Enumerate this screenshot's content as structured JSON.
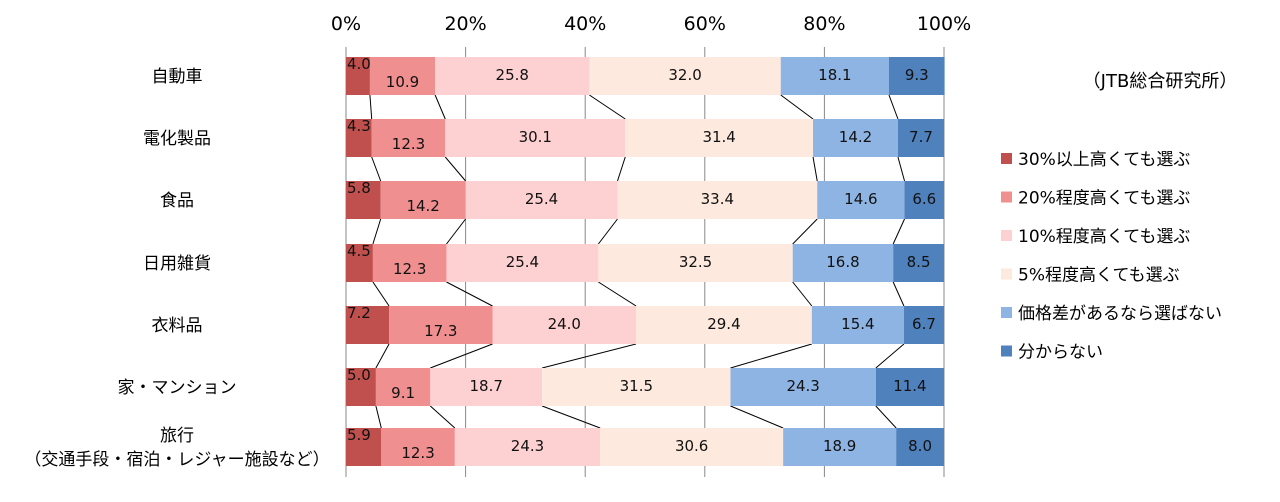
{
  "chart_data": {
    "type": "bar",
    "stacked": "percent",
    "orientation": "horizontal",
    "source": "（JTB総合研究所）",
    "xlim": [
      0,
      100
    ],
    "x_ticks": [
      "0%",
      "20%",
      "40%",
      "60%",
      "80%",
      "100%"
    ],
    "grid": true,
    "legend_position": "right",
    "categories": [
      "自動車",
      "電化製品",
      "食品",
      "日用雑貨",
      "衣料品",
      "家・マンション",
      [
        "旅行",
        "（交通手段・宿泊・レジャー施設など）"
      ]
    ],
    "series": [
      {
        "name": "30%以上高くても選ぶ",
        "color": "#c0504d",
        "values": [
          4.0,
          4.3,
          5.8,
          4.5,
          7.2,
          5.0,
          5.9
        ]
      },
      {
        "name": "20%程度高くても選ぶ",
        "color": "#f08f8f",
        "values": [
          10.9,
          12.3,
          14.2,
          12.3,
          17.3,
          9.1,
          12.3
        ]
      },
      {
        "name": "10%程度高くても選ぶ",
        "color": "#fdd0d2",
        "values": [
          25.8,
          30.1,
          25.4,
          25.4,
          24.0,
          18.7,
          24.3
        ]
      },
      {
        "name": "5%程度高くても選ぶ",
        "color": "#fde9de",
        "values": [
          32.0,
          31.4,
          33.4,
          32.5,
          29.4,
          31.5,
          30.6
        ]
      },
      {
        "name": "価格差があるなら選ばない",
        "color": "#8eb4e3",
        "values": [
          18.1,
          14.2,
          14.6,
          16.8,
          15.4,
          24.3,
          18.9
        ]
      },
      {
        "name": "分からない",
        "color": "#4f81bd",
        "values": [
          9.3,
          7.7,
          6.6,
          8.5,
          6.7,
          11.4,
          8.0
        ]
      }
    ]
  }
}
